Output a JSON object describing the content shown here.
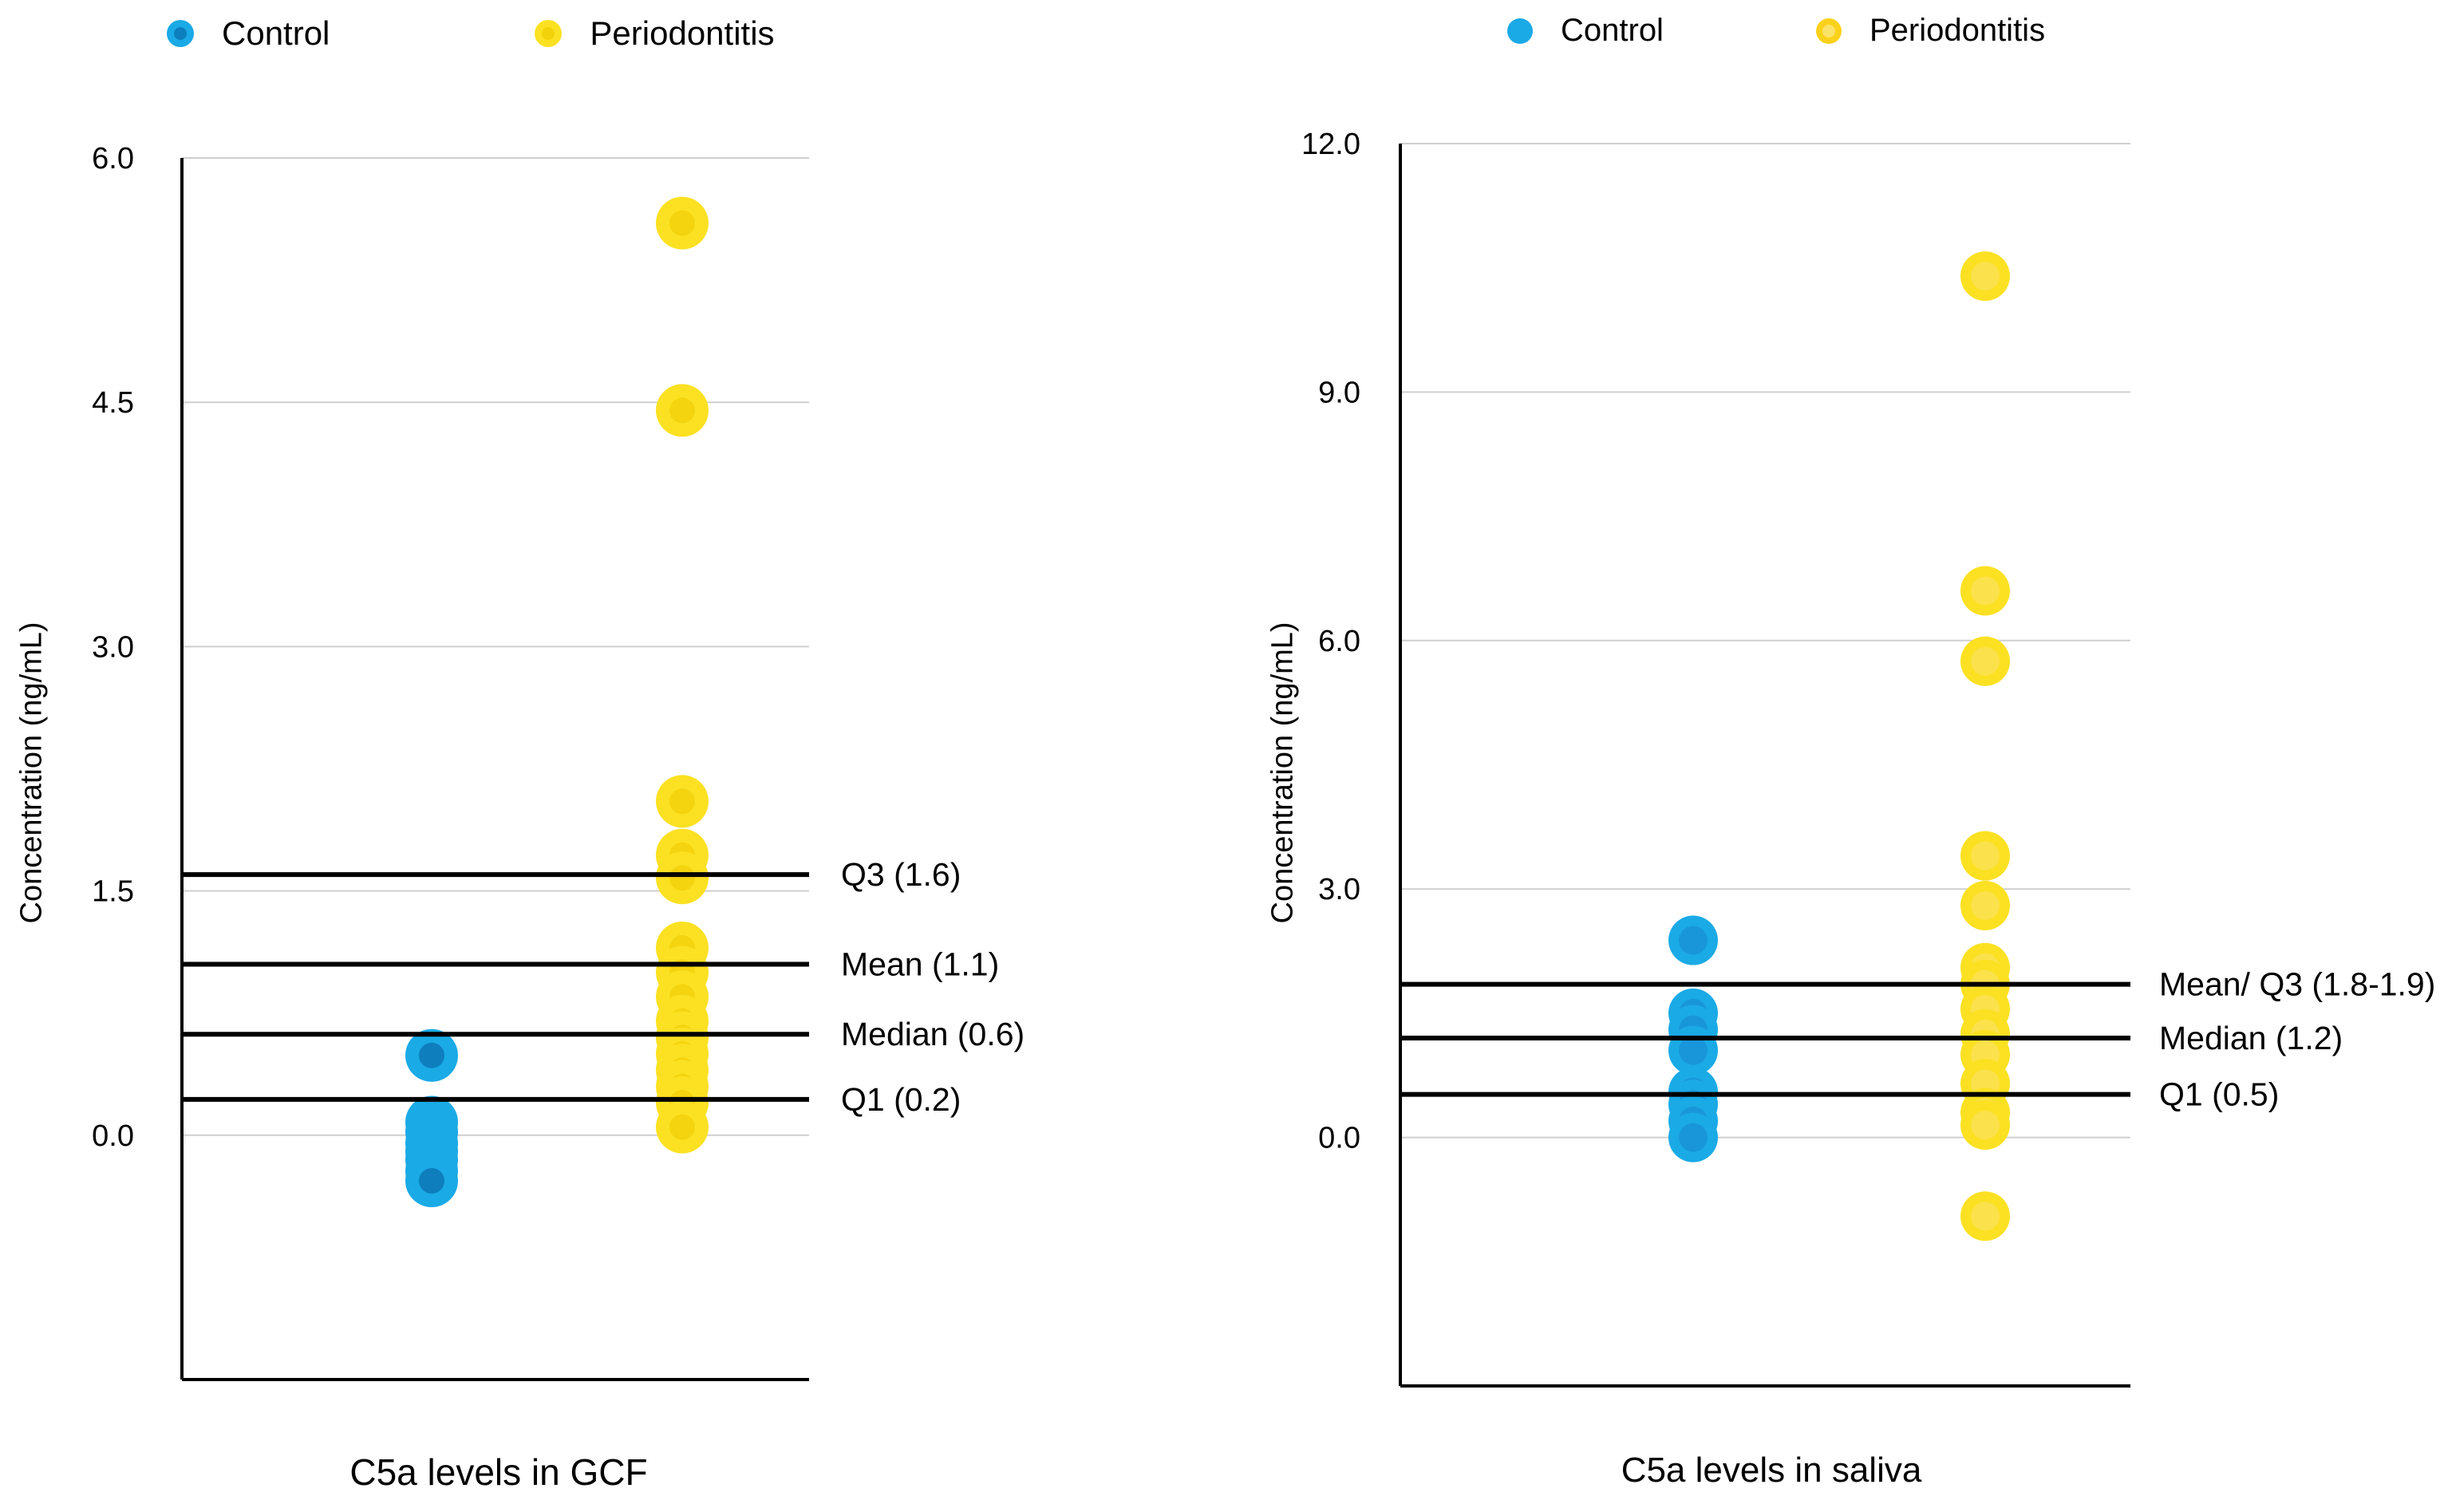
{
  "chart_data": [
    {
      "type": "scatter",
      "title": "C5a levels in GCF",
      "xlabel": "",
      "ylabel": "Concentration (ng/mL)",
      "ylim": [
        -1.5,
        6.0
      ],
      "yticks": [
        "6.0",
        "4.5",
        "3.0",
        "1.5",
        "0.0"
      ],
      "ytick_values": [
        6.0,
        4.5,
        3.0,
        1.5,
        0.0
      ],
      "grid": true,
      "legend": [
        {
          "name": "Control",
          "color": "#1AAAE6"
        },
        {
          "name": "Periodontitis",
          "color": "#FBE122"
        }
      ],
      "series": [
        {
          "name": "Control",
          "color": "#1AAAE6",
          "x": 1,
          "values": [
            0.49,
            0.08,
            0.02,
            -0.05,
            -0.1,
            -0.15,
            -0.22,
            -0.28
          ]
        },
        {
          "name": "Periodontitis",
          "color": "#FBE122",
          "x": 2,
          "values": [
            5.6,
            4.45,
            2.05,
            1.72,
            1.58,
            1.15,
            1.0,
            0.85,
            0.7,
            0.6,
            0.5,
            0.4,
            0.3,
            0.2,
            0.05
          ]
        }
      ],
      "reference_lines": [
        {
          "label": "Q3 (1.6)",
          "value": 1.6
        },
        {
          "label": "Mean (1.1)",
          "value": 1.05
        },
        {
          "label": "Median (0.6)",
          "value": 0.62
        },
        {
          "label": "Q1 (0.2)",
          "value": 0.22
        }
      ]
    },
    {
      "type": "scatter",
      "title": "C5a levels in saliva",
      "xlabel": "",
      "ylabel": "Concentration (ng/mL)",
      "ylim": [
        -3.0,
        12.0
      ],
      "yticks": [
        "12.0",
        "9.0",
        "6.0",
        "3.0",
        "0.0"
      ],
      "ytick_values": [
        12.0,
        9.0,
        6.0,
        3.0,
        0.0
      ],
      "grid": true,
      "legend": [
        {
          "name": "Control",
          "color": "#1AAAE6"
        },
        {
          "name": "Periodontitis",
          "color": "#FBE122"
        }
      ],
      "series": [
        {
          "name": "Control",
          "color": "#1AAAE6",
          "x": 1,
          "values": [
            2.38,
            1.5,
            1.3,
            1.05,
            0.55,
            0.4,
            0.2,
            0.0
          ]
        },
        {
          "name": "Periodontitis",
          "color": "#FBE122",
          "x": 2,
          "values": [
            10.4,
            6.6,
            5.75,
            3.4,
            2.8,
            2.05,
            1.85,
            1.55,
            1.25,
            1.0,
            0.65,
            0.3,
            0.15,
            -0.95
          ]
        }
      ],
      "reference_lines": [
        {
          "label": "Mean/ Q3 (1.8-1.9)",
          "value": 1.85
        },
        {
          "label": "Median (1.2)",
          "value": 1.2
        },
        {
          "label": "Q1 (0.5)",
          "value": 0.52
        }
      ]
    }
  ]
}
